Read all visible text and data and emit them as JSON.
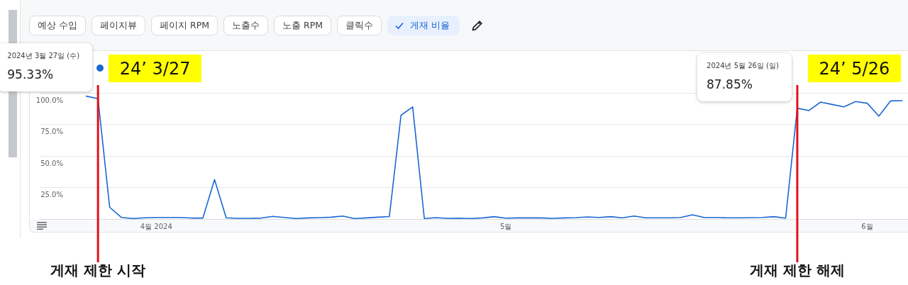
{
  "chart_data": {
    "type": "line",
    "x": [
      "2024-03-26",
      "2024-03-27",
      "2024-03-28",
      "2024-03-29",
      "2024-03-30",
      "2024-03-31",
      "2024-04-01",
      "2024-04-02",
      "2024-04-03",
      "2024-04-04",
      "2024-04-05",
      "2024-04-06",
      "2024-04-07",
      "2024-04-08",
      "2024-04-09",
      "2024-04-10",
      "2024-04-11",
      "2024-04-12",
      "2024-04-13",
      "2024-04-14",
      "2024-04-15",
      "2024-04-16",
      "2024-04-17",
      "2024-04-18",
      "2024-04-19",
      "2024-04-20",
      "2024-04-21",
      "2024-04-22",
      "2024-04-23",
      "2024-04-24",
      "2024-04-25",
      "2024-04-26",
      "2024-04-27",
      "2024-04-28",
      "2024-04-29",
      "2024-04-30",
      "2024-05-01",
      "2024-05-02",
      "2024-05-03",
      "2024-05-04",
      "2024-05-05",
      "2024-05-06",
      "2024-05-07",
      "2024-05-08",
      "2024-05-09",
      "2024-05-10",
      "2024-05-11",
      "2024-05-12",
      "2024-05-13",
      "2024-05-14",
      "2024-05-15",
      "2024-05-16",
      "2024-05-17",
      "2024-05-18",
      "2024-05-19",
      "2024-05-20",
      "2024-05-21",
      "2024-05-22",
      "2024-05-23",
      "2024-05-24",
      "2024-05-25",
      "2024-05-26",
      "2024-05-27",
      "2024-05-28",
      "2024-05-29",
      "2024-05-30",
      "2024-05-31",
      "2024-06-01",
      "2024-06-02",
      "2024-06-03",
      "2024-06-04"
    ],
    "series": [
      {
        "name": "게재 비율",
        "color": "#1967d2",
        "values": [
          97.4,
          95.33,
          9.4,
          1.3,
          0.4,
          1.0,
          1.3,
          1.3,
          1.3,
          0.8,
          0.8,
          31.3,
          1.0,
          0.6,
          0.6,
          0.8,
          2.1,
          1.3,
          0.4,
          0.9,
          1.1,
          1.5,
          2.4,
          0.4,
          0.9,
          1.5,
          2.0,
          82.3,
          88.8,
          0.4,
          1.1,
          0.6,
          0.7,
          0.4,
          0.9,
          1.9,
          0.7,
          0.9,
          0.9,
          0.9,
          0.6,
          0.9,
          1.1,
          1.7,
          1.3,
          1.9,
          1.0,
          2.4,
          1.0,
          1.0,
          1.0,
          1.3,
          3.4,
          1.3,
          1.3,
          1.0,
          1.0,
          1.1,
          1.3,
          1.9,
          0.7,
          87.85,
          86.0,
          92.7,
          90.8,
          88.9,
          93.1,
          91.8,
          81.6,
          93.6,
          93.8
        ]
      }
    ],
    "xlim": [
      "2024-03-22",
      "2024-06-04T12:00"
    ],
    "xticks": [
      {
        "value": "2024-04-01",
        "label": "4월 2024"
      },
      {
        "value": "2024-05-01",
        "label": "5월"
      },
      {
        "value": "2024-06-01",
        "label": "6월"
      }
    ],
    "ylim": [
      0,
      100
    ],
    "yticks": [
      {
        "value": 25,
        "label": "25.0%"
      },
      {
        "value": 50,
        "label": "50.0%"
      },
      {
        "value": 75,
        "label": "75.0%"
      },
      {
        "value": 100,
        "label": "100.0%"
      }
    ],
    "grid": "y",
    "marker": "none",
    "line_style": "solid",
    "legend": "top left",
    "ref_lines": [
      {
        "axis": "x",
        "value": "2024-03-27",
        "label": "게재 제한 시작",
        "color": "#e3101b"
      },
      {
        "axis": "x",
        "value": "2024-05-26",
        "label": "게재 제한 해제",
        "color": "#e3101b"
      }
    ],
    "annotations": [
      "예상 수입",
      "페이지뷰",
      "페이지 RPM",
      "노출수",
      "노출 RPM",
      "클릭수",
      "2024년 3월 27일 (수)",
      "95.33%",
      "24’ 3/27",
      "2024년 5월 26일 (일)",
      "87.85%",
      "24’ 5/26"
    ]
  }
}
